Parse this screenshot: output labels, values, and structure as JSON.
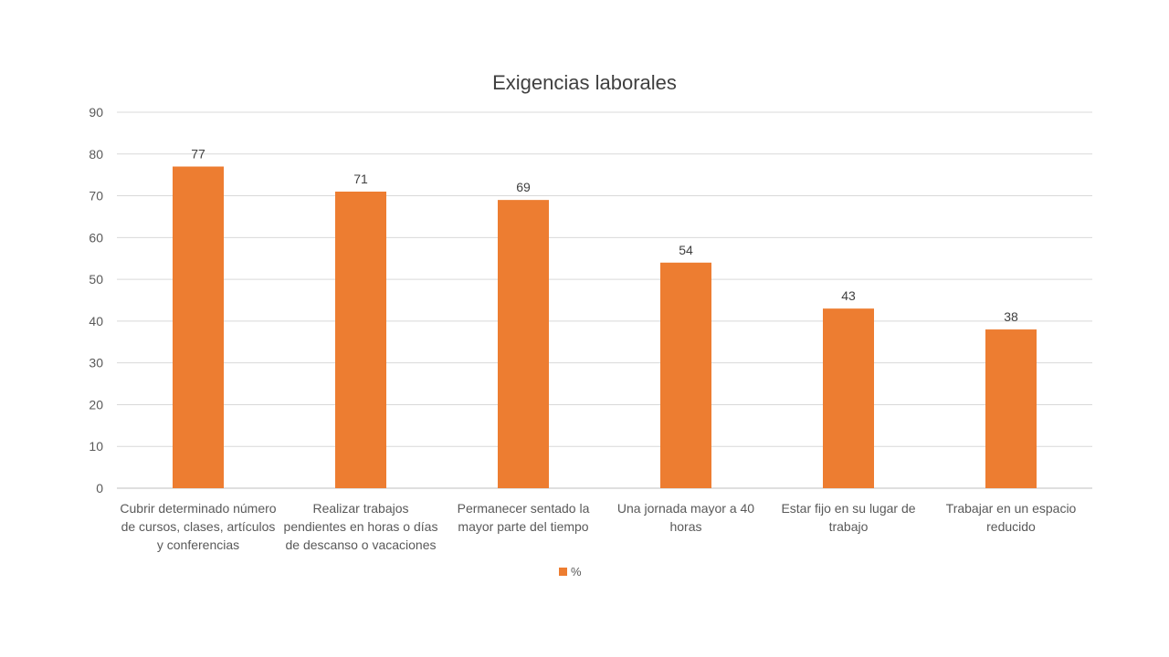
{
  "chart_data": {
    "type": "bar",
    "title": "Exigencias laborales",
    "categories": [
      "Cubrir determinado número de cursos, clases, artículos y conferencias",
      "Realizar trabajos pendientes en horas o días de descanso o vacaciones",
      "Permanecer sentado la mayor parte del tiempo",
      "Una jornada mayor a 40 horas",
      "Estar fijo en su lugar de trabajo",
      "Trabajar en un espacio reducido"
    ],
    "series": [
      {
        "name": "%",
        "values": [
          77,
          71,
          69,
          54,
          43,
          38
        ],
        "color": "#ED7D31"
      }
    ],
    "xlabel": "",
    "ylabel": "",
    "ylim": [
      0,
      90
    ],
    "yticks": [
      0,
      10,
      20,
      30,
      40,
      50,
      60,
      70,
      80,
      90
    ],
    "grid": true,
    "legend": "bottom"
  }
}
